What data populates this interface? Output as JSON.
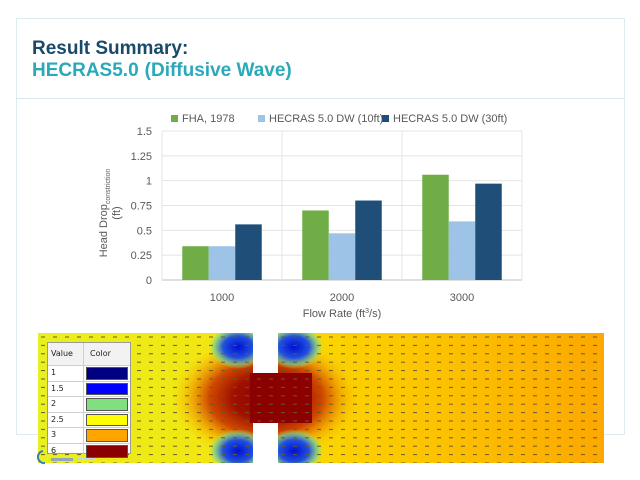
{
  "header": {
    "title": "Result Summary:",
    "subtitle_model": "HECRAS5.0",
    "subtitle_mode": "(Diffusive Wave)"
  },
  "chart_data": {
    "type": "bar",
    "title": "",
    "xlabel": "Flow Rate (ft³/s)",
    "ylabel": "Head Drop",
    "ylabel_subscript": "constriction",
    "ylabel_unit": "(ft)",
    "categories": [
      "1000",
      "2000",
      "3000"
    ],
    "series": [
      {
        "name": "FHA, 1978",
        "color": "#70ad47",
        "values": [
          0.34,
          0.7,
          1.06
        ]
      },
      {
        "name": "HECRAS 5.0 DW (10ft)",
        "color": "#9dc3e6",
        "values": [
          0.34,
          0.47,
          0.59
        ]
      },
      {
        "name": "HECRAS 5.0 DW (30ft)",
        "color": "#1f4e79",
        "values": [
          0.56,
          0.8,
          0.97
        ]
      }
    ],
    "ylim": [
      0,
      1.5
    ],
    "yticks": [
      "0",
      "0.25",
      "0.5",
      "0.75",
      "1",
      "1.25",
      "1.5"
    ],
    "ytick_values": [
      0,
      0.25,
      0.5,
      0.75,
      1,
      1.25,
      1.5
    ],
    "grid": true,
    "legend_position": "top"
  },
  "flow_map": {
    "legend": {
      "header_value": "Value",
      "header_color": "Color",
      "rows": [
        {
          "value": "1",
          "color": "#000080"
        },
        {
          "value": "1.5",
          "color": "#0000ff"
        },
        {
          "value": "2",
          "color": "#80e080"
        },
        {
          "value": "2.5",
          "color": "#ffff00"
        },
        {
          "value": "3",
          "color": "#ffa500"
        },
        {
          "value": "6",
          "color": "#8b0000"
        }
      ]
    }
  }
}
